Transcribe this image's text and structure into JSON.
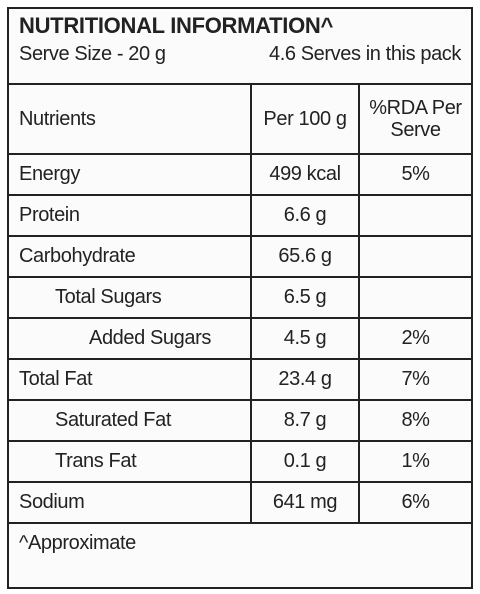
{
  "header": {
    "title": "NUTRITIONAL INFORMATION^",
    "serve_size": "Serve Size - 20 g",
    "serves": "4.6 Serves in this pack"
  },
  "table": {
    "columns": [
      "Nutrients",
      "Per 100 g",
      "%RDA Per Serve"
    ],
    "rows": [
      [
        "Energy",
        "499 kcal",
        "5%"
      ],
      [
        "Protein",
        "6.6 g"
      ],
      [
        "Carbohydrate",
        "65.6 g"
      ],
      [
        "Total Sugars",
        "6.5 g"
      ],
      [
        "Added Sugars",
        "4.5 g",
        "2%"
      ],
      [
        "Total Fat",
        "23.4 g",
        "7%"
      ],
      [
        "Saturated Fat",
        "8.7 g",
        "8%"
      ],
      [
        "Trans Fat",
        "0.1 g",
        "1%"
      ],
      [
        "Sodium",
        "641 mg",
        "6%"
      ]
    ]
  },
  "footer": "^Approximate"
}
